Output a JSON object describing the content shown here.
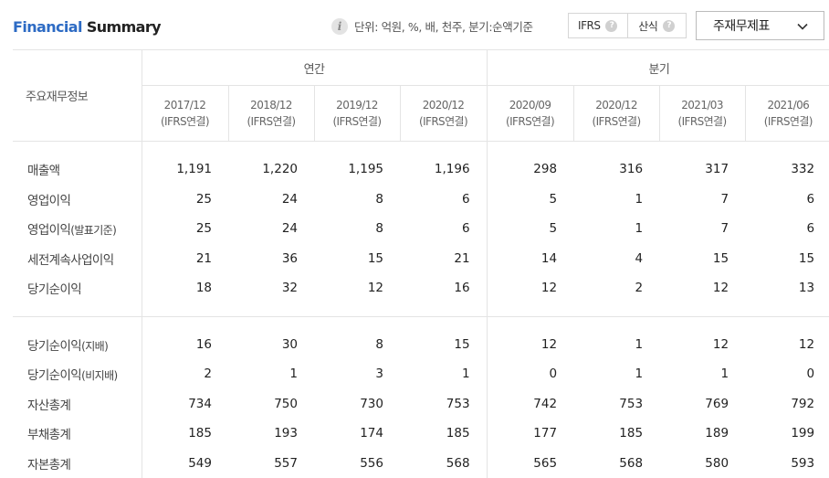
{
  "header": {
    "title_part1": "Financial",
    "title_part2": "Summary",
    "unit_text": "단위: 억원, %, 배, 천주, 분기:순액기준",
    "toggle": [
      "IFRS",
      "산식"
    ],
    "dropdown_value": "주재무제표",
    "icons": {
      "info": "info-icon",
      "help": "question-icon",
      "dropdown": "chevron-down-icon"
    }
  },
  "table": {
    "row_header_label": "주요재무정보",
    "group_annual": "연간",
    "group_quarter": "분기",
    "periods": [
      {
        "date": "2017/12",
        "basis": "(IFRS연결)"
      },
      {
        "date": "2018/12",
        "basis": "(IFRS연결)"
      },
      {
        "date": "2019/12",
        "basis": "(IFRS연결)"
      },
      {
        "date": "2020/12",
        "basis": "(IFRS연결)"
      },
      {
        "date": "2020/09",
        "basis": "(IFRS연결)"
      },
      {
        "date": "2020/12",
        "basis": "(IFRS연결)"
      },
      {
        "date": "2021/03",
        "basis": "(IFRS연결)"
      },
      {
        "date": "2021/06",
        "basis": "(IFRS연결)"
      }
    ],
    "rows_group1": [
      {
        "label": "매출액",
        "suffix": "",
        "values": [
          "1,191",
          "1,220",
          "1,195",
          "1,196",
          "298",
          "316",
          "317",
          "332"
        ]
      },
      {
        "label": "영업이익",
        "suffix": "",
        "values": [
          "25",
          "24",
          "8",
          "6",
          "5",
          "1",
          "7",
          "6"
        ]
      },
      {
        "label": "영업이익",
        "suffix": "(발표기준)",
        "values": [
          "25",
          "24",
          "8",
          "6",
          "5",
          "1",
          "7",
          "6"
        ]
      },
      {
        "label": "세전계속사업이익",
        "suffix": "",
        "values": [
          "21",
          "36",
          "15",
          "21",
          "14",
          "4",
          "15",
          "15"
        ]
      },
      {
        "label": "당기순이익",
        "suffix": "",
        "values": [
          "18",
          "32",
          "12",
          "16",
          "12",
          "2",
          "12",
          "13"
        ]
      }
    ],
    "rows_group2": [
      {
        "label": "당기순이익",
        "suffix": "(지배)",
        "values": [
          "16",
          "30",
          "8",
          "15",
          "12",
          "1",
          "12",
          "12"
        ]
      },
      {
        "label": "당기순이익",
        "suffix": "(비지배)",
        "values": [
          "2",
          "1",
          "3",
          "1",
          "0",
          "1",
          "1",
          "0"
        ]
      },
      {
        "label": "자산총계",
        "suffix": "",
        "values": [
          "734",
          "750",
          "730",
          "753",
          "742",
          "753",
          "769",
          "792"
        ]
      },
      {
        "label": "부채총계",
        "suffix": "",
        "values": [
          "185",
          "193",
          "174",
          "185",
          "177",
          "185",
          "189",
          "199"
        ]
      },
      {
        "label": "자본총계",
        "suffix": "",
        "values": [
          "549",
          "557",
          "556",
          "568",
          "565",
          "568",
          "580",
          "593"
        ]
      }
    ]
  }
}
